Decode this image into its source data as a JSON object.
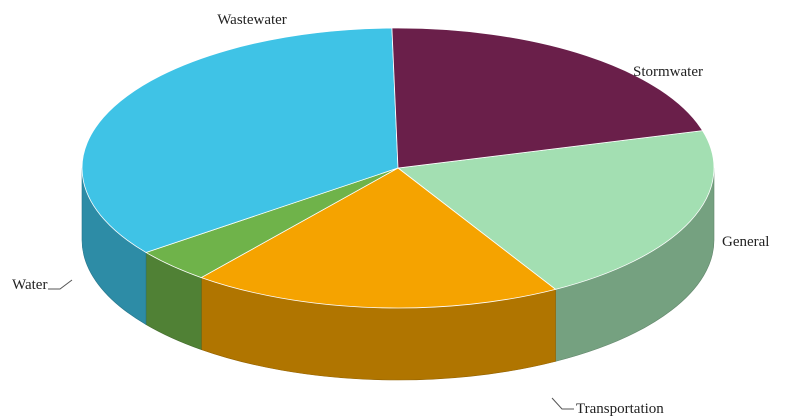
{
  "chart_data": {
    "type": "pie",
    "title": "",
    "slices": [
      {
        "label": "Wastewater",
        "value": 21,
        "color": "#a3dfb2"
      },
      {
        "label": "Stormwater",
        "value": 19,
        "color": "#f5a300"
      },
      {
        "label": "General",
        "value": 4,
        "color": "#6fb34a"
      },
      {
        "label": "Transportation",
        "value": 35,
        "color": "#3fc3e6"
      },
      {
        "label": "Water",
        "value": 21,
        "color": "#6a1f4a"
      }
    ],
    "style": "3d-tilted"
  }
}
